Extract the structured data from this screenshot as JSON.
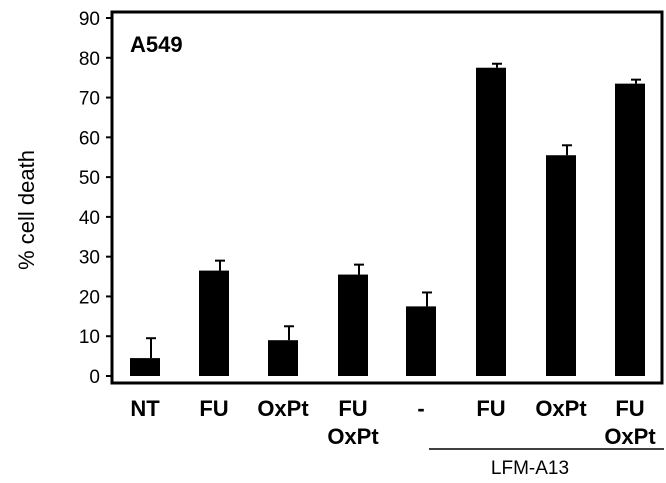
{
  "chart_data": {
    "type": "bar",
    "title": "",
    "panel_label": "A549",
    "ylabel": "% cell death",
    "xlabel": "",
    "ylim": [
      0,
      90
    ],
    "yticks": [
      0,
      10,
      20,
      30,
      40,
      50,
      60,
      70,
      80,
      90
    ],
    "grid": false,
    "categories": [
      {
        "line1": "NT",
        "line2": ""
      },
      {
        "line1": "FU",
        "line2": ""
      },
      {
        "line1": "OxPt",
        "line2": ""
      },
      {
        "line1": "FU",
        "line2": "OxPt"
      },
      {
        "line1": "-",
        "line2": ""
      },
      {
        "line1": "FU",
        "line2": ""
      },
      {
        "line1": "OxPt",
        "line2": ""
      },
      {
        "line1": "FU",
        "line2": "OxPt"
      }
    ],
    "values": [
      4.5,
      26.5,
      9,
      25.5,
      17.5,
      77.5,
      55.5,
      73.5
    ],
    "errors": [
      5,
      2.5,
      3.5,
      2.5,
      3.5,
      1,
      2.5,
      1
    ],
    "group_label": {
      "text": "LFM-A13",
      "from_category": 4,
      "to_category": 7
    }
  }
}
